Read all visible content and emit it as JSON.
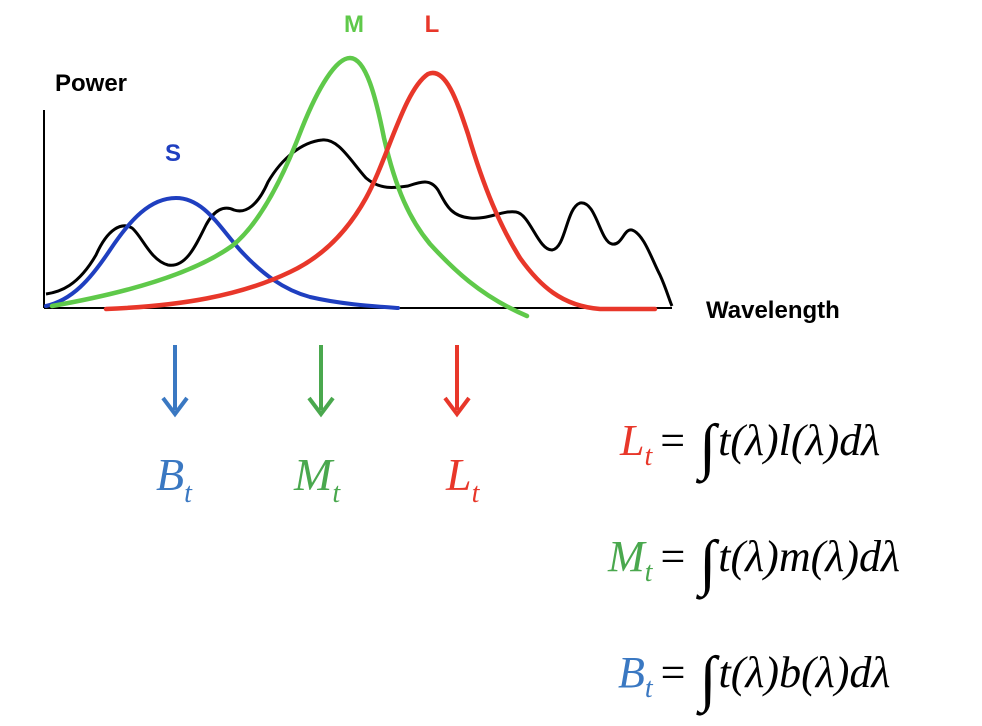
{
  "axes": {
    "y_label": "Power",
    "x_label": "Wavelength"
  },
  "curves": {
    "s": {
      "label": "S",
      "color": "#1f3fc0"
    },
    "m": {
      "label": "M",
      "color": "#5fc94a"
    },
    "l": {
      "label": "L",
      "color": "#e8372a"
    },
    "spectrum": {
      "color": "#000000"
    }
  },
  "outputs": [
    {
      "symbol": "B",
      "sub": "t",
      "color": "#3a78c2"
    },
    {
      "symbol": "M",
      "sub": "t",
      "color": "#4aa84e"
    },
    {
      "symbol": "L",
      "sub": "t",
      "color": "#e8372a"
    }
  ],
  "equations": [
    {
      "symbol": "L",
      "sub": "t",
      "eq": "=",
      "integral": "∫",
      "rhs": "t(λ)l(λ)dλ",
      "color": "#e8372a"
    },
    {
      "symbol": "M",
      "sub": "t",
      "eq": "=",
      "integral": "∫",
      "rhs": "t(λ)m(λ)dλ",
      "color": "#4aa84e"
    },
    {
      "symbol": "B",
      "sub": "t",
      "eq": "=",
      "integral": "∫",
      "rhs": "t(λ)b(λ)dλ",
      "color": "#3a78c2"
    }
  ]
}
